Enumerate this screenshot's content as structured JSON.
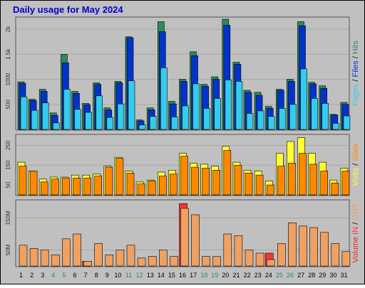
{
  "page": {
    "title": "Daily usage for May 2024"
  },
  "colors": {
    "background": "#c0c0c0",
    "panel": "#c0c0c0",
    "hits": "#2e8b57",
    "files": "#0033cc",
    "pages": "#33ccee",
    "visits": "#ffff33",
    "sites": "#ff8800",
    "in": "#ff3333",
    "out": "#f0a060",
    "volume": "#ff2222",
    "weekend_label": "#2e8b57",
    "title_text": "#0000cc"
  },
  "right_labels": {
    "panel1": [
      {
        "text": "Pages",
        "color": "#33ccee"
      },
      {
        "text": " / ",
        "color": "#000000"
      },
      {
        "text": "Files",
        "color": "#0033cc"
      },
      {
        "text": " / ",
        "color": "#000000"
      },
      {
        "text": "Hits",
        "color": "#2e8b57"
      }
    ],
    "panel2": [
      {
        "text": "Visits",
        "color": "#ffff33"
      },
      {
        "text": " / ",
        "color": "#000000"
      },
      {
        "text": "Sites",
        "color": "#ff8800"
      }
    ],
    "panel3": [
      {
        "text": "Volume",
        "color": "#ff2222"
      },
      {
        "text": "  ",
        "color": "#000000"
      },
      {
        "text": "IN",
        "color": "#ff3333"
      },
      {
        "text": " / ",
        "color": "#000000"
      },
      {
        "text": "OUT",
        "color": "#f0a060"
      }
    ]
  },
  "days": [
    "1",
    "2",
    "3",
    "4",
    "5",
    "6",
    "7",
    "8",
    "9",
    "10",
    "11",
    "12",
    "13",
    "14",
    "15",
    "16",
    "17",
    "18",
    "19",
    "20",
    "21",
    "22",
    "23",
    "24",
    "25",
    "26",
    "27",
    "28",
    "29",
    "30",
    "31"
  ],
  "weekend_days": [
    4,
    5,
    11,
    12,
    18,
    19,
    25,
    26
  ],
  "chart_data": [
    {
      "type": "bar",
      "title": "Daily usage for May 2024",
      "ylim": [
        0,
        2200
      ],
      "ticks": [
        500,
        1000,
        1500,
        2000
      ],
      "tick_labels": [
        "500",
        "1000",
        "1.5k",
        "2k"
      ],
      "series": [
        {
          "name": "Hits",
          "values": [
            950,
            600,
            800,
            330,
            1500,
            760,
            520,
            930,
            430,
            960,
            1850,
            190,
            430,
            2150,
            560,
            1000,
            1550,
            900,
            1050,
            2200,
            1340,
            780,
            740,
            460,
            800,
            1000,
            2150,
            940,
            870,
            300,
            540
          ]
        },
        {
          "name": "Files",
          "values": [
            920,
            580,
            760,
            280,
            1330,
            720,
            490,
            900,
            390,
            930,
            1830,
            170,
            390,
            1950,
            510,
            960,
            1470,
            860,
            1000,
            2080,
            1300,
            740,
            680,
            420,
            780,
            960,
            2070,
            910,
            820,
            290,
            500
          ]
        },
        {
          "name": "Pages",
          "values": [
            650,
            380,
            530,
            130,
            800,
            400,
            340,
            670,
            240,
            510,
            970,
            90,
            260,
            1230,
            250,
            470,
            910,
            420,
            620,
            990,
            960,
            320,
            370,
            260,
            420,
            500,
            1210,
            620,
            520,
            120,
            270
          ]
        }
      ]
    },
    {
      "type": "bar",
      "ylim": [
        0,
        295
      ],
      "ticks": [
        50,
        150,
        250
      ],
      "tick_labels": [
        "50",
        "150",
        "250"
      ],
      "series": [
        {
          "name": "Visits",
          "values": [
            165,
            120,
            80,
            90,
            90,
            100,
            100,
            105,
            145,
            190,
            120,
            65,
            75,
            115,
            125,
            210,
            160,
            155,
            145,
            245,
            165,
            125,
            120,
            70,
            210,
            270,
            290,
            210,
            165,
            75,
            135
          ]
        },
        {
          "name": "Sites",
          "values": [
            145,
            120,
            65,
            80,
            85,
            85,
            85,
            95,
            140,
            185,
            110,
            55,
            70,
            95,
            105,
            195,
            140,
            135,
            125,
            225,
            150,
            110,
            100,
            50,
            145,
            160,
            210,
            155,
            120,
            60,
            120
          ]
        }
      ]
    },
    {
      "type": "bar",
      "ylim": [
        0,
        200
      ],
      "ticks": [
        50,
        150
      ],
      "tick_labels": [
        "50M",
        "150M"
      ],
      "series": [
        {
          "name": "IN",
          "values": [
            0,
            0,
            0,
            0,
            0,
            0,
            15,
            0,
            0,
            0,
            0,
            0,
            0,
            0,
            0,
            195,
            0,
            0,
            0,
            0,
            0,
            0,
            0,
            40,
            0,
            0,
            0,
            0,
            0,
            0,
            0
          ]
        },
        {
          "name": "OUT",
          "values": [
            65,
            55,
            50,
            35,
            85,
            100,
            15,
            70,
            35,
            50,
            65,
            25,
            30,
            50,
            30,
            180,
            160,
            30,
            30,
            100,
            95,
            50,
            40,
            20,
            70,
            135,
            125,
            120,
            105,
            70,
            45
          ]
        }
      ]
    }
  ]
}
